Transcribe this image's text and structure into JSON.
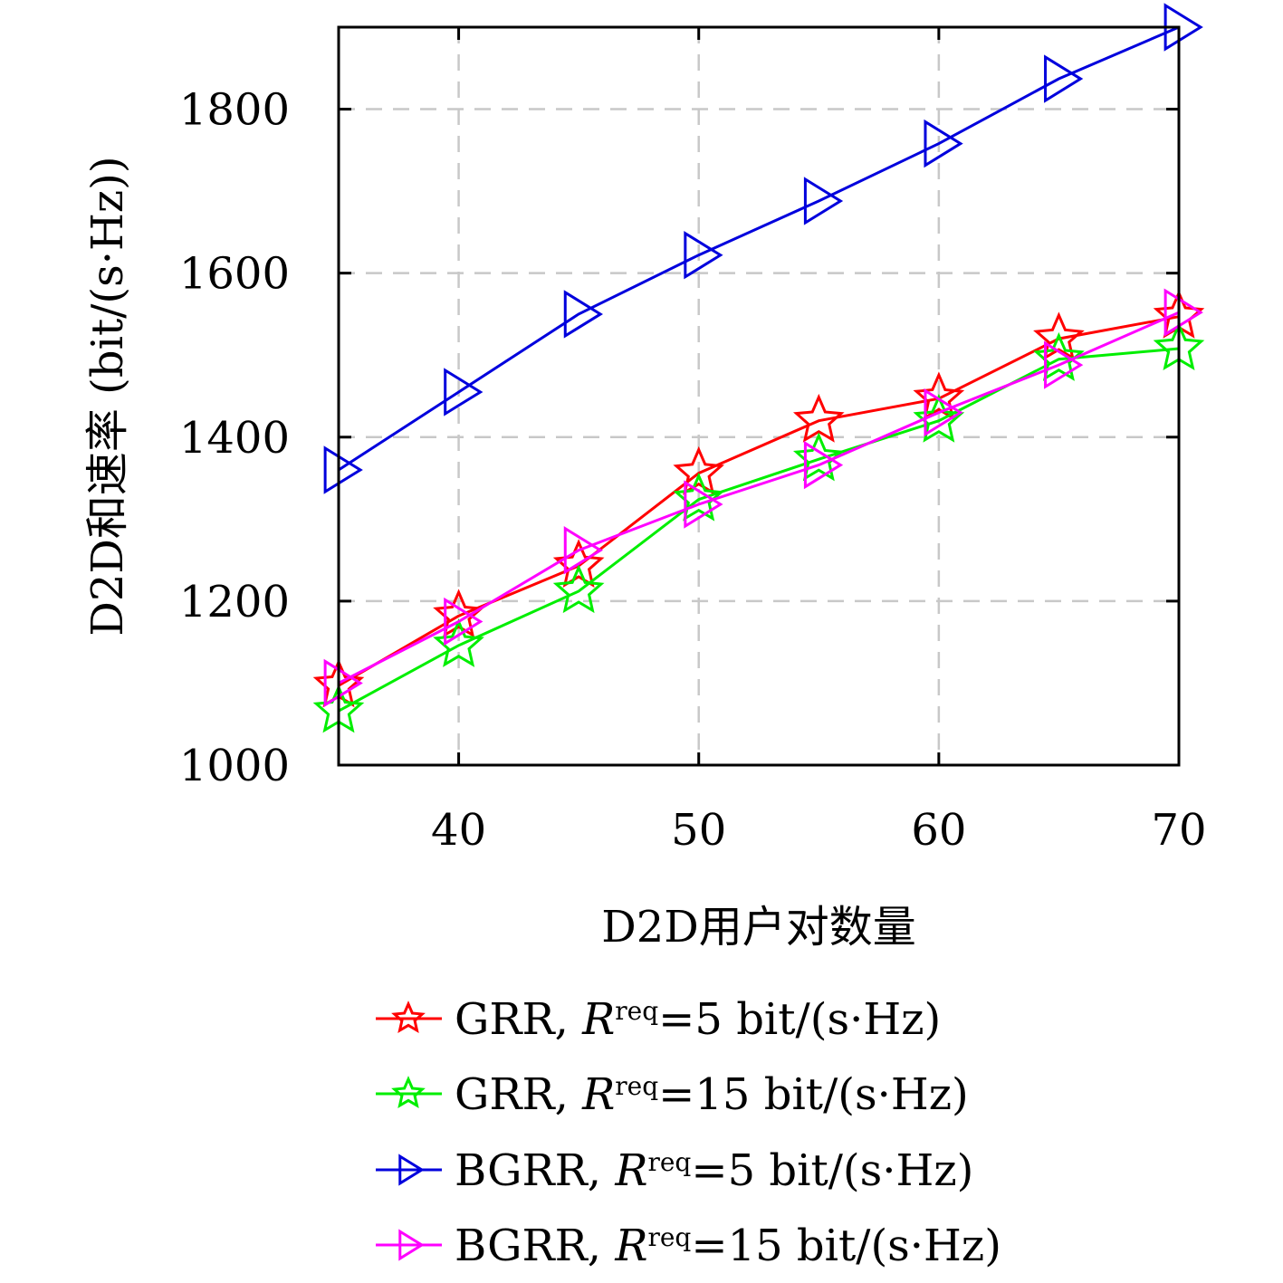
{
  "chart_data": {
    "type": "line",
    "xlabel": "D2D用户对数量",
    "ylabel": "D2D和速率 (bit/(s·Hz))",
    "xlim": [
      35,
      70
    ],
    "ylim": [
      1000,
      1900
    ],
    "xticks": [
      40,
      50,
      60,
      70
    ],
    "yticks": [
      1000,
      1200,
      1400,
      1600,
      1800
    ],
    "grid": true,
    "legend_position": "bottom",
    "series": [
      {
        "name": "GRR, R^req=5 bit/(s·Hz)",
        "legend": {
          "prefix": "GRR, ",
          "var": "R",
          "sup": "req",
          "suffix": "=5 bit/(s·Hz)"
        },
        "color": "#ff0000",
        "marker": "star",
        "x": [
          35,
          40,
          45,
          50,
          55,
          60,
          65,
          70
        ],
        "y": [
          1097,
          1182,
          1243,
          1356,
          1420,
          1447,
          1520,
          1547
        ]
      },
      {
        "name": "GRR, R^req=15 bit/(s·Hz)",
        "legend": {
          "prefix": "GRR, ",
          "var": "R",
          "sup": "req",
          "suffix": "=15 bit/(s·Hz)"
        },
        "color": "#00ee00",
        "marker": "star",
        "x": [
          35,
          40,
          45,
          50,
          55,
          60,
          65,
          70
        ],
        "y": [
          1066,
          1146,
          1212,
          1324,
          1373,
          1420,
          1495,
          1508
        ]
      },
      {
        "name": "BGRR, R^req=5 bit/(s·Hz)",
        "legend": {
          "prefix": "BGRR, ",
          "var": "R",
          "sup": "req",
          "suffix": "=5 bit/(s·Hz)"
        },
        "color": "#0000dd",
        "marker": "triangle-right",
        "x": [
          35,
          40,
          45,
          50,
          55,
          60,
          65,
          70
        ],
        "y": [
          1360,
          1455,
          1550,
          1622,
          1688,
          1758,
          1837,
          1900
        ]
      },
      {
        "name": "BGRR, R^req=15 bit/(s·Hz)",
        "legend": {
          "prefix": "BGRR, ",
          "var": "R",
          "sup": "req",
          "suffix": "=15 bit/(s·Hz)"
        },
        "color": "#ff00ff",
        "marker": "triangle-right",
        "x": [
          35,
          40,
          45,
          50,
          55,
          60,
          65,
          70
        ],
        "y": [
          1100,
          1175,
          1262,
          1318,
          1366,
          1430,
          1488,
          1552
        ]
      }
    ]
  }
}
